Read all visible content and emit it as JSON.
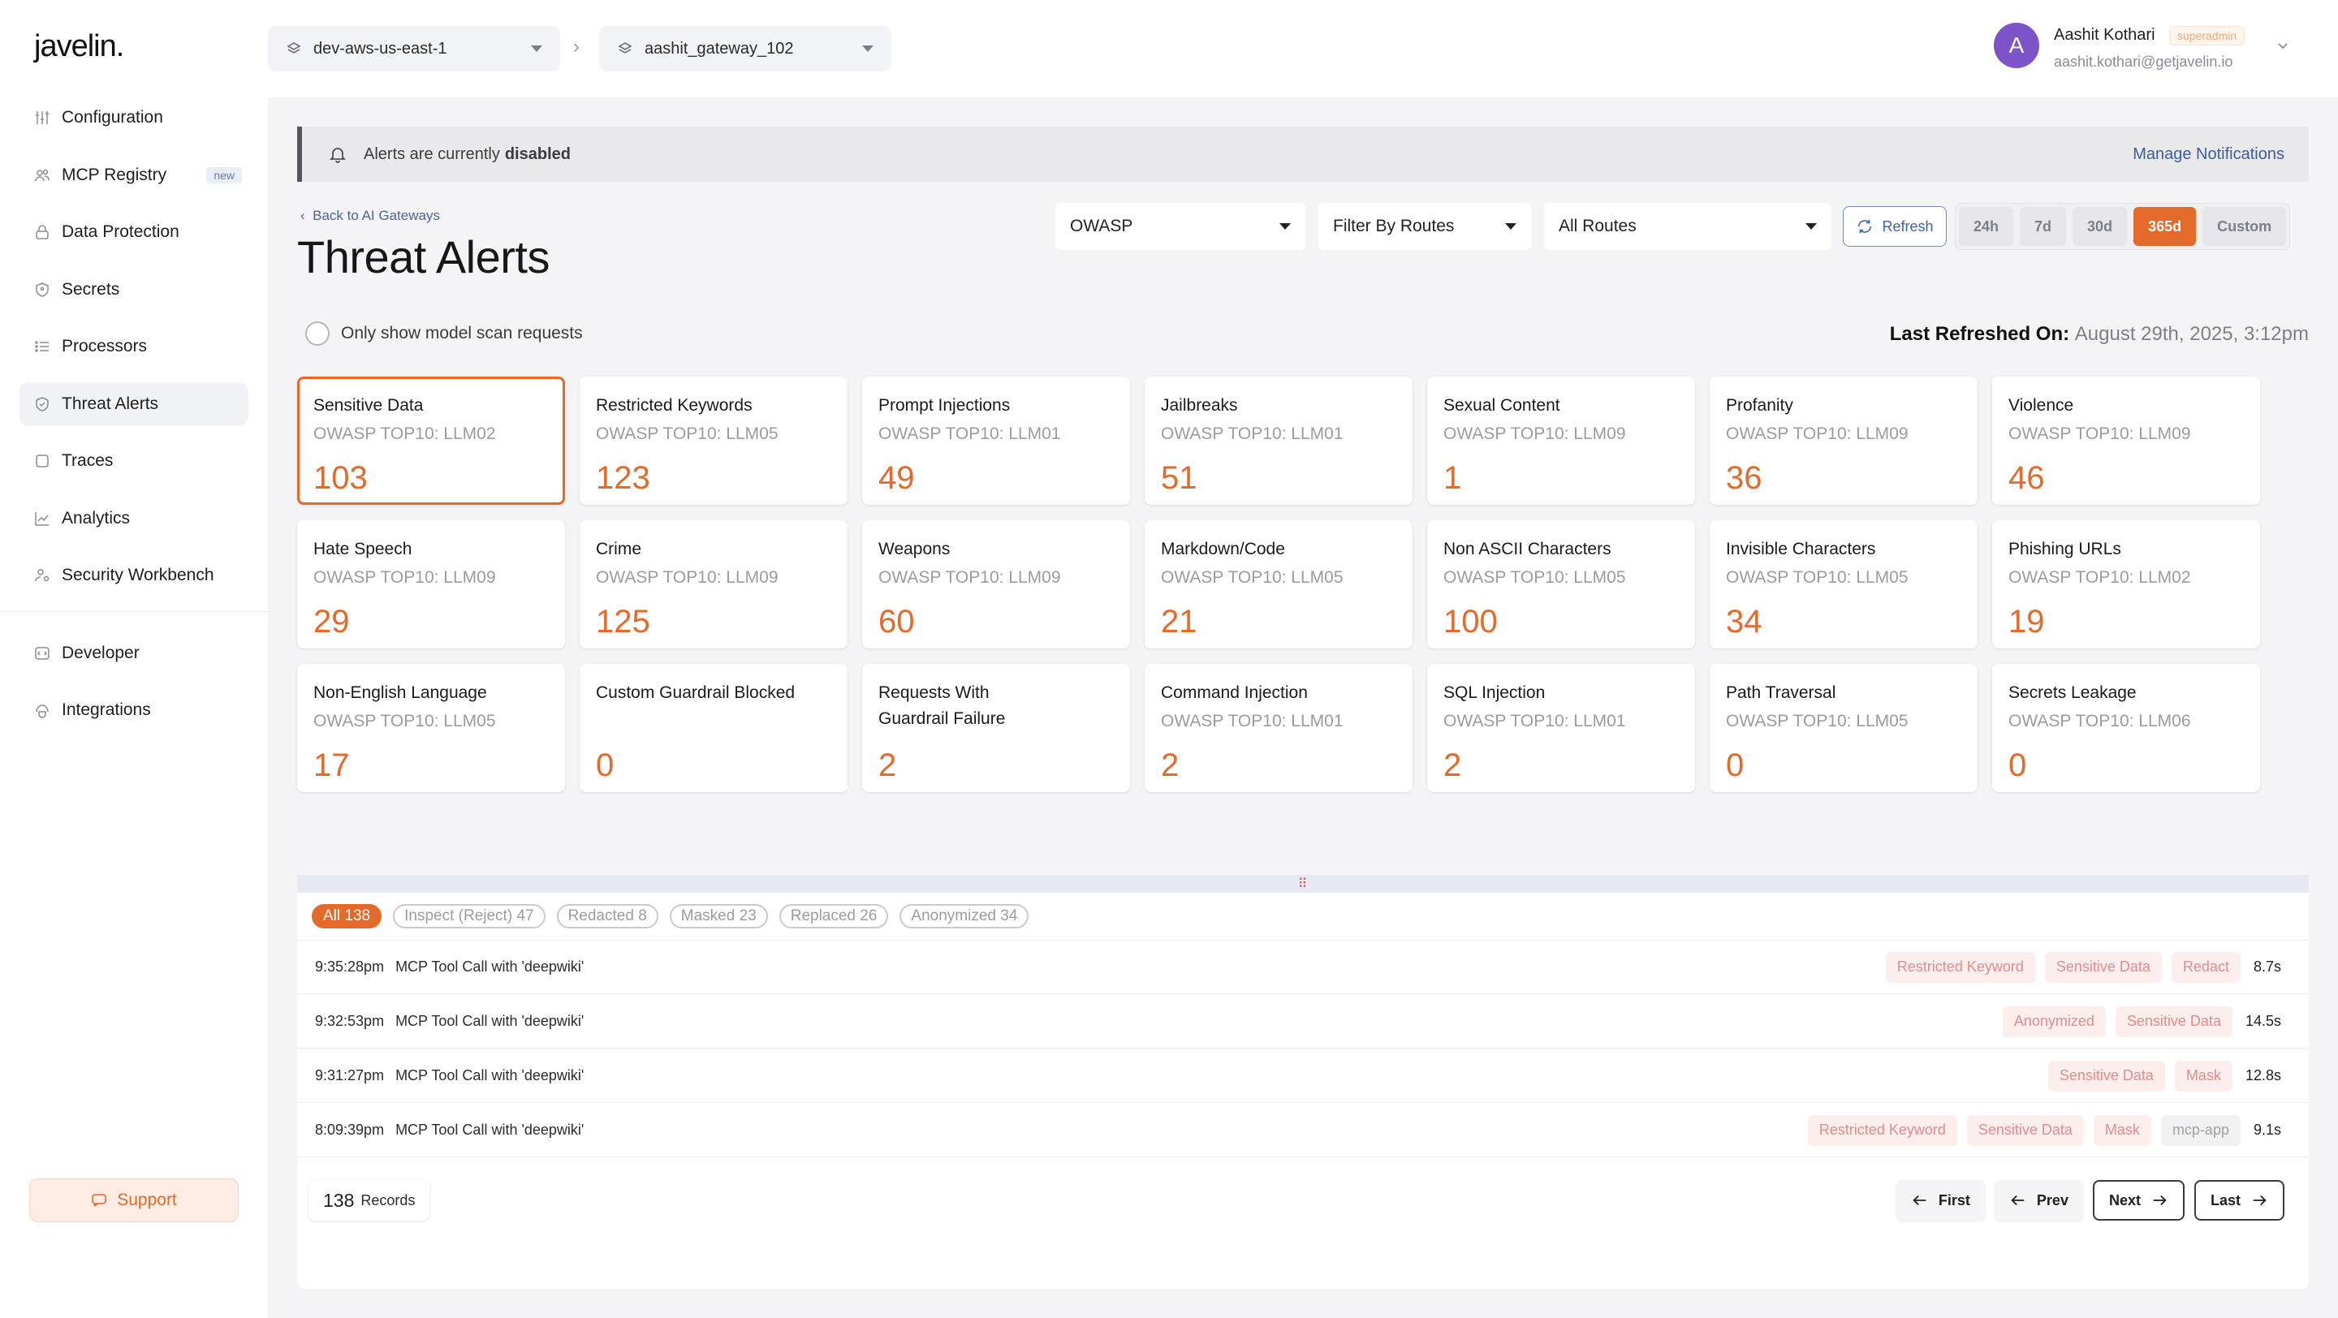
{
  "app": {
    "logo": "javelin."
  },
  "sidebar": {
    "items": [
      {
        "label": "Configuration",
        "icon": "sliders-icon"
      },
      {
        "label": "MCP Registry",
        "icon": "users-icon",
        "badge": "new"
      },
      {
        "label": "Data Protection",
        "icon": "lock-icon"
      },
      {
        "label": "Secrets",
        "icon": "shield-icon"
      },
      {
        "label": "Processors",
        "icon": "list-icon"
      },
      {
        "label": "Threat Alerts",
        "icon": "shield-check-icon",
        "active": true
      },
      {
        "label": "Traces",
        "icon": "square-icon"
      },
      {
        "label": "Analytics",
        "icon": "chart-icon"
      },
      {
        "label": "Security Workbench",
        "icon": "user-gear-icon"
      },
      {
        "label": "Developer",
        "icon": "code-icon"
      },
      {
        "label": "Integrations",
        "icon": "plug-icon"
      }
    ],
    "support_label": "Support"
  },
  "header": {
    "env": "dev-aws-us-east-1",
    "gateway": "aashit_gateway_102",
    "separator": "›",
    "user": {
      "initial": "A",
      "name": "Aashit Kothari",
      "role": "superadmin",
      "email": "aashit.kothari@getjavelin.io"
    }
  },
  "banner": {
    "text": "Alerts are currently",
    "emphasis": "disabled",
    "link": "Manage Notifications"
  },
  "page": {
    "back_label": "Back to AI Gateways",
    "title": "Threat Alerts"
  },
  "controls": {
    "framework": "OWASP",
    "filter_by": "Filter By Routes",
    "routes": "All Routes",
    "refresh_label": "Refresh",
    "ranges": [
      "24h",
      "7d",
      "30d",
      "365d",
      "Custom"
    ],
    "active_range": "365d",
    "model_scan_label": "Only show model scan requests",
    "last_refreshed_label": "Last Refreshed On:",
    "last_refreshed_value": "August 29th, 2025, 3:12pm"
  },
  "cards": [
    {
      "title": "Sensitive Data",
      "sub": "OWASP TOP10: LLM02",
      "value": "103",
      "selected": true
    },
    {
      "title": "Restricted Keywords",
      "sub": "OWASP TOP10: LLM05",
      "value": "123"
    },
    {
      "title": "Prompt Injections",
      "sub": "OWASP TOP10: LLM01",
      "value": "49"
    },
    {
      "title": "Jailbreaks",
      "sub": "OWASP TOP10: LLM01",
      "value": "51"
    },
    {
      "title": "Sexual Content",
      "sub": "OWASP TOP10: LLM09",
      "value": "1"
    },
    {
      "title": "Profanity",
      "sub": "OWASP TOP10: LLM09",
      "value": "36"
    },
    {
      "title": "Violence",
      "sub": "OWASP TOP10: LLM09",
      "value": "46"
    },
    {
      "title": "Hate Speech",
      "sub": "OWASP TOP10: LLM09",
      "value": "29"
    },
    {
      "title": "Crime",
      "sub": "OWASP TOP10: LLM09",
      "value": "125"
    },
    {
      "title": "Weapons",
      "sub": "OWASP TOP10: LLM09",
      "value": "60"
    },
    {
      "title": "Markdown/Code",
      "sub": "OWASP TOP10: LLM05",
      "value": "21"
    },
    {
      "title": "Non ASCII Characters",
      "sub": "OWASP TOP10: LLM05",
      "value": "100"
    },
    {
      "title": "Invisible Characters",
      "sub": "OWASP TOP10: LLM05",
      "value": "34"
    },
    {
      "title": "Phishing URLs",
      "sub": "OWASP TOP10: LLM02",
      "value": "19"
    },
    {
      "title": "Non-English Language",
      "sub": "OWASP TOP10: LLM05",
      "value": "17"
    },
    {
      "title": "Custom Guardrail Blocked",
      "sub": "",
      "value": "0"
    },
    {
      "title": "Requests With Guardrail Failure",
      "sub": "",
      "value": "2"
    },
    {
      "title": "Command Injection",
      "sub": "OWASP TOP10: LLM01",
      "value": "2"
    },
    {
      "title": "SQL Injection",
      "sub": "OWASP TOP10: LLM01",
      "value": "2"
    },
    {
      "title": "Path Traversal",
      "sub": "OWASP TOP10: LLM05",
      "value": "0"
    },
    {
      "title": "Secrets Leakage",
      "sub": "OWASP TOP10: LLM06",
      "value": "0"
    }
  ],
  "filters": [
    {
      "label": "All 138",
      "active": true
    },
    {
      "label": "Inspect (Reject) 47"
    },
    {
      "label": "Redacted 8"
    },
    {
      "label": "Masked 23"
    },
    {
      "label": "Replaced 26"
    },
    {
      "label": "Anonymized 34"
    }
  ],
  "rows": [
    {
      "time": "9:35:28pm",
      "desc": "MCP Tool Call with 'deepwiki'",
      "tags": [
        "Restricted Keyword",
        "Sensitive Data",
        "Redact"
      ],
      "gray_tags": [],
      "duration": "8.7s"
    },
    {
      "time": "9:32:53pm",
      "desc": "MCP Tool Call with 'deepwiki'",
      "tags": [
        "Anonymized",
        "Sensitive Data"
      ],
      "gray_tags": [],
      "duration": "14.5s"
    },
    {
      "time": "9:31:27pm",
      "desc": "MCP Tool Call with 'deepwiki'",
      "tags": [
        "Sensitive Data",
        "Mask"
      ],
      "gray_tags": [],
      "duration": "12.8s"
    },
    {
      "time": "8:09:39pm",
      "desc": "MCP Tool Call with 'deepwiki'",
      "tags": [
        "Restricted Keyword",
        "Sensitive Data",
        "Mask"
      ],
      "gray_tags": [
        "mcp-app"
      ],
      "duration": "9.1s"
    }
  ],
  "pagination": {
    "records_count": "138",
    "records_label": "Records",
    "first": "First",
    "prev": "Prev",
    "next": "Next",
    "last": "Last"
  },
  "colors": {
    "accent": "#e46a2c",
    "tag_bg": "#fdeeee",
    "tag_text": "#e38c8c",
    "avatar": "#7e52c9"
  }
}
